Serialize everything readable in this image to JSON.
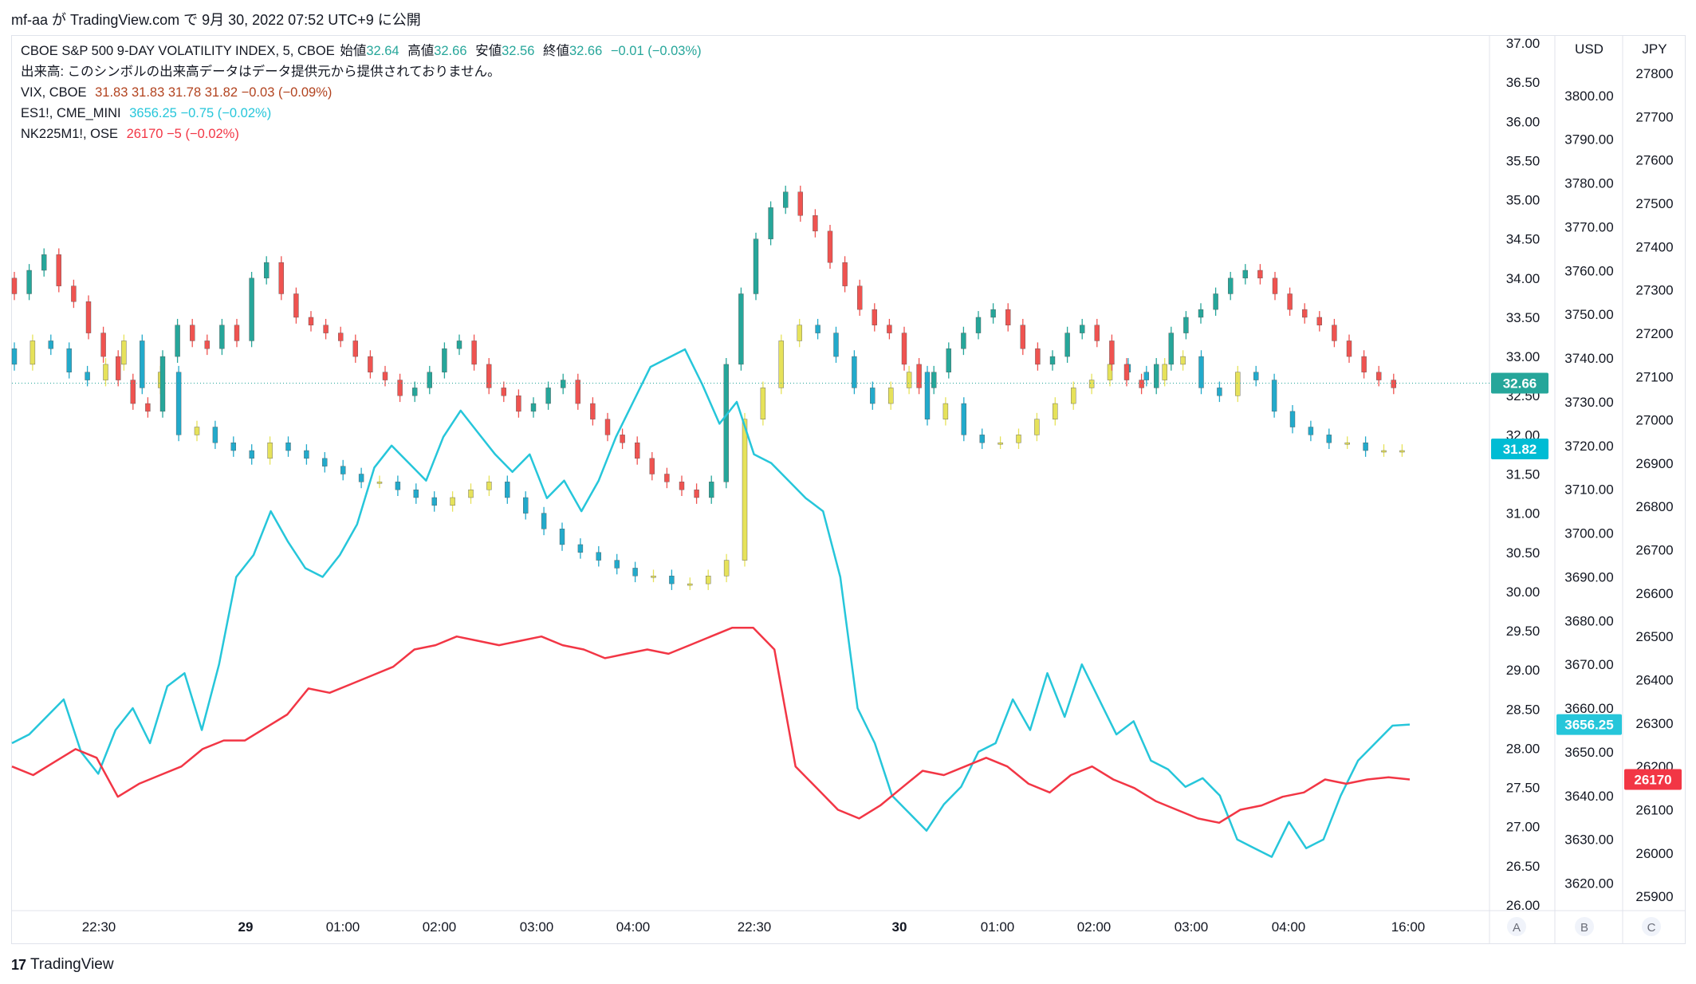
{
  "header": {
    "publish_line": "mf-aa が TradingView.com で 9月 30, 2022 07:52 UTC+9 に公開"
  },
  "legend": {
    "main_title": "CBOE S&P 500 9-DAY VOLATILITY INDEX, 5, CBOE",
    "main_ohlc": {
      "o_label": "始値",
      "o": "32.64",
      "h_label": "高値",
      "h": "32.66",
      "l_label": "安値",
      "l": "32.56",
      "c_label": "終値",
      "c": "32.66",
      "chg": "−0.01 (−0.03%)"
    },
    "volume_note": "出来高: このシンボルの出来高データはデータ提供元から提供されておりません。",
    "vix": {
      "name": "VIX, CBOE",
      "values": "31.83  31.83  31.78  31.82  −0.03 (−0.09%)"
    },
    "es": {
      "name": "ES1!, CME_MINI",
      "values": "3656.25  −0.75 (−0.02%)"
    },
    "nk": {
      "name": "NK225M1!, OSE",
      "values": "26170  −5 (−0.02%)"
    }
  },
  "axes": {
    "currency_usd": "USD",
    "currency_jpy": "JPY",
    "scale_buttons": [
      "A",
      "B",
      "C"
    ],
    "price_labels": [
      "37.00",
      "36.50",
      "36.00",
      "35.50",
      "35.00",
      "34.50",
      "34.00",
      "33.50",
      "33.00",
      "32.50",
      "32.00",
      "31.50",
      "31.00",
      "30.50",
      "30.00",
      "29.50",
      "29.00",
      "28.50",
      "28.00",
      "27.50",
      "27.00",
      "26.50",
      "26.00"
    ],
    "usd_labels": [
      "3800.00",
      "3790.00",
      "3780.00",
      "3770.00",
      "3760.00",
      "3750.00",
      "3740.00",
      "3730.00",
      "3720.00",
      "3710.00",
      "3700.00",
      "3690.00",
      "3680.00",
      "3670.00",
      "3660.00",
      "3650.00",
      "3640.00",
      "3630.00",
      "3620.00"
    ],
    "jpy_labels": [
      "27800",
      "27700",
      "27600",
      "27500",
      "27400",
      "27300",
      "27200",
      "27100",
      "27000",
      "26900",
      "26800",
      "26700",
      "26600",
      "26500",
      "26400",
      "26300",
      "26200",
      "26100",
      "26000",
      "25900"
    ],
    "time_labels": [
      "22:30",
      "29",
      "01:00",
      "02:00",
      "03:00",
      "04:00",
      "22:30",
      "30",
      "01:00",
      "02:00",
      "03:00",
      "04:00",
      "16:00"
    ],
    "last_badges": {
      "vix9d": "32.66",
      "vix": "31.82",
      "es": "3656.25",
      "nk": "26170"
    }
  },
  "colors": {
    "up": "#26a69a",
    "down": "#ef5350",
    "es_line": "#26c6da",
    "nk_line": "#f23645",
    "vix_up": "#e6e25a",
    "vix_down": "#22aacb",
    "badge_main": "#26a69a",
    "badge_vix": "#00bcd4",
    "badge_es": "#26c6da",
    "badge_nk": "#f23645"
  },
  "chart_data": {
    "type": "candlestick+line",
    "x_time_labels": [
      "22:30",
      "29",
      "01:00",
      "02:00",
      "03:00",
      "04:00",
      "22:30",
      "30",
      "01:00",
      "02:00",
      "03:00",
      "04:00",
      "16:00"
    ],
    "ylim_vix9d": [
      26.0,
      37.0
    ],
    "ylim_usd": [
      3615,
      3812
    ],
    "ylim_jpy": [
      25880,
      27870
    ],
    "series": [
      {
        "name": "VIX9D",
        "type": "candles",
        "close": [
          33.8,
          34.1,
          34.3,
          33.9,
          33.7,
          33.3,
          33.0,
          32.7,
          32.4,
          32.3,
          33.0,
          33.4,
          33.2,
          33.1,
          33.4,
          33.2,
          34.0,
          34.2,
          33.8,
          33.5,
          33.4,
          33.3,
          33.2,
          33.0,
          32.8,
          32.7,
          32.5,
          32.6,
          32.8,
          33.1,
          33.2,
          32.9,
          32.6,
          32.5,
          32.3,
          32.4,
          32.6,
          32.7,
          32.4,
          32.2,
          32.0,
          31.9,
          31.7,
          31.5,
          31.4,
          31.3,
          31.2,
          31.4,
          32.9,
          33.8,
          34.5,
          34.9,
          35.1,
          34.8,
          34.6,
          34.2,
          33.9,
          33.6,
          33.4,
          33.3,
          32.9,
          32.6,
          32.8,
          33.1,
          33.3,
          33.5,
          33.6,
          33.4,
          33.1,
          32.9,
          33.0,
          33.3,
          33.4,
          33.2,
          32.9,
          32.7,
          32.6,
          32.9,
          33.3,
          33.5,
          33.6,
          33.8,
          34.0,
          34.1,
          34.0,
          33.8,
          33.6,
          33.5,
          33.4,
          33.2,
          33.0,
          32.8,
          32.7,
          32.6
        ]
      },
      {
        "name": "VIX",
        "type": "candles",
        "close": [
          32.9,
          33.2,
          33.1,
          32.8,
          32.7,
          32.9,
          33.2,
          32.6,
          32.8,
          32.0,
          32.1,
          31.9,
          31.8,
          31.7,
          31.9,
          31.8,
          31.7,
          31.6,
          31.5,
          31.4,
          31.4,
          31.3,
          31.2,
          31.1,
          31.2,
          31.3,
          31.4,
          31.2,
          31.0,
          30.8,
          30.6,
          30.5,
          30.4,
          30.3,
          30.2,
          30.2,
          30.1,
          30.1,
          30.2,
          30.4,
          32.2,
          32.6,
          33.2,
          33.4,
          33.3,
          33.0,
          32.6,
          32.4,
          32.6,
          32.8,
          32.2,
          32.4,
          32.0,
          31.9,
          31.9,
          32.0,
          32.2,
          32.4,
          32.6,
          32.7,
          32.9,
          32.8,
          32.7,
          32.9,
          33.0,
          32.6,
          32.5,
          32.8,
          32.7,
          32.3,
          32.1,
          32.0,
          31.9,
          31.9,
          31.8,
          31.8,
          31.8
        ]
      },
      {
        "name": "ES1!",
        "type": "line",
        "values": [
          3652,
          3654,
          3658,
          3662,
          3650,
          3645,
          3655,
          3660,
          3652,
          3665,
          3668,
          3655,
          3670,
          3690,
          3695,
          3705,
          3698,
          3692,
          3690,
          3695,
          3702,
          3715,
          3720,
          3716,
          3712,
          3722,
          3728,
          3723,
          3718,
          3714,
          3718,
          3708,
          3712,
          3705,
          3712,
          3722,
          3730,
          3738,
          3740,
          3742,
          3734,
          3725,
          3730,
          3718,
          3716,
          3712,
          3708,
          3705,
          3690,
          3660,
          3652,
          3640,
          3636,
          3632,
          3638,
          3642,
          3650,
          3652,
          3662,
          3655,
          3668,
          3658,
          3670,
          3662,
          3654,
          3657,
          3648,
          3646,
          3642,
          3644,
          3640,
          3630,
          3628,
          3626,
          3634,
          3628,
          3630,
          3640,
          3648,
          3652,
          3656,
          3656.25
        ]
      },
      {
        "name": "NK225M1!",
        "type": "line",
        "values": [
          26200,
          26180,
          26210,
          26240,
          26220,
          26130,
          26160,
          26180,
          26200,
          26240,
          26260,
          26260,
          26290,
          26320,
          26380,
          26370,
          26390,
          26410,
          26430,
          26470,
          26480,
          26500,
          26490,
          26480,
          26490,
          26500,
          26480,
          26470,
          26450,
          26460,
          26470,
          26460,
          26480,
          26500,
          26520,
          26520,
          26470,
          26200,
          26150,
          26100,
          26080,
          26110,
          26150,
          26190,
          26180,
          26200,
          26220,
          26200,
          26160,
          26140,
          26180,
          26200,
          26170,
          26150,
          26120,
          26100,
          26080,
          26070,
          26100,
          26110,
          26130,
          26140,
          26170,
          26160,
          26170,
          26175,
          26170
        ]
      }
    ]
  }
}
